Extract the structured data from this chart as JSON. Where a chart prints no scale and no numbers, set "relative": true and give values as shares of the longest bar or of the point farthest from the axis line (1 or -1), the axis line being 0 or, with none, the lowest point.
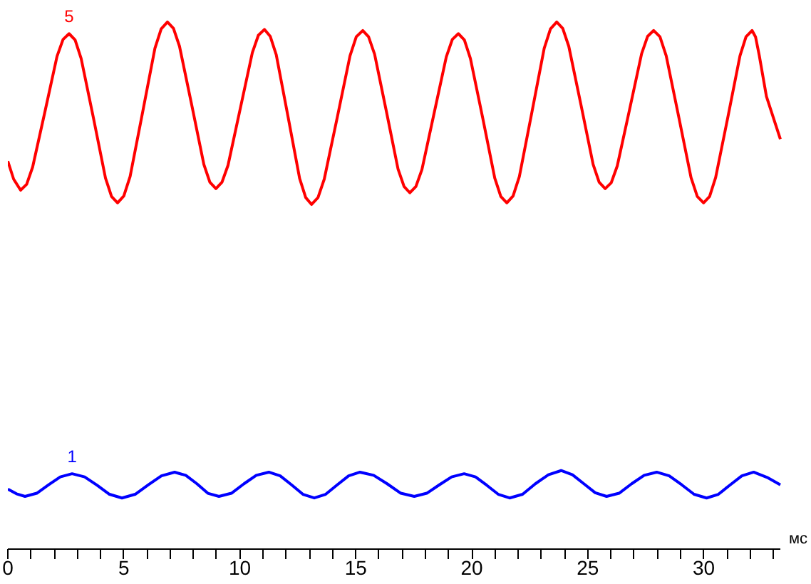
{
  "chart_data": {
    "type": "line",
    "relative": true,
    "xlabel": "мс",
    "line_style": "solid",
    "xlim": [
      0,
      33.3
    ],
    "xticks": [
      0,
      {
        "value": 1,
        "label": null
      },
      {
        "value": 2,
        "label": null
      },
      {
        "value": 3,
        "label": null
      },
      {
        "value": 4,
        "label": null
      },
      5,
      {
        "value": 6,
        "label": null
      },
      {
        "value": 7,
        "label": null
      },
      {
        "value": 8,
        "label": null
      },
      {
        "value": 9,
        "label": null
      },
      10,
      {
        "value": 11,
        "label": null
      },
      {
        "value": 12,
        "label": null
      },
      {
        "value": 13,
        "label": null
      },
      {
        "value": 14,
        "label": null
      },
      15,
      {
        "value": 16,
        "label": null
      },
      {
        "value": 17,
        "label": null
      },
      {
        "value": 18,
        "label": null
      },
      {
        "value": 19,
        "label": null
      },
      20,
      {
        "value": 21,
        "label": null
      },
      {
        "value": 22,
        "label": null
      },
      {
        "value": 23,
        "label": null
      },
      {
        "value": 24,
        "label": null
      },
      25,
      {
        "value": 26,
        "label": null
      },
      {
        "value": 27,
        "label": null
      },
      {
        "value": 28,
        "label": null
      },
      {
        "value": 29,
        "label": null
      },
      30,
      {
        "value": 31,
        "label": null
      },
      {
        "value": 32,
        "label": null
      },
      {
        "value": 33,
        "label": null
      }
    ],
    "series": [
      {
        "name": "5",
        "color": "#ff0000",
        "x": [
          0,
          0.25,
          0.55,
          0.81,
          1.07,
          1.6,
          2.12,
          2.38,
          2.64,
          2.9,
          3.16,
          3.69,
          4.21,
          4.47,
          4.73,
          5.0,
          5.27,
          5.81,
          6.34,
          6.61,
          6.88,
          7.14,
          7.4,
          7.93,
          8.45,
          8.71,
          8.97,
          9.23,
          9.49,
          10.02,
          10.54,
          10.8,
          11.06,
          11.31,
          11.57,
          12.08,
          12.58,
          12.84,
          13.09,
          13.37,
          13.64,
          14.2,
          14.75,
          15.02,
          15.3,
          15.55,
          15.81,
          16.32,
          16.82,
          17.08,
          17.33,
          17.59,
          17.85,
          18.38,
          18.9,
          19.16,
          19.42,
          19.68,
          19.94,
          20.47,
          20.99,
          21.25,
          21.51,
          21.78,
          22.05,
          22.59,
          23.12,
          23.39,
          23.66,
          23.92,
          24.18,
          24.71,
          25.23,
          25.49,
          25.75,
          26.01,
          26.27,
          26.8,
          27.32,
          27.58,
          27.84,
          28.11,
          28.38,
          28.92,
          29.45,
          29.72,
          29.99,
          30.25,
          30.51,
          31.04,
          31.56,
          31.82,
          32.08,
          32.23,
          32.39,
          32.7,
          33.3
        ],
        "values": [
          0.736,
          0.702,
          0.681,
          0.692,
          0.725,
          0.83,
          0.935,
          0.967,
          0.978,
          0.966,
          0.931,
          0.818,
          0.704,
          0.669,
          0.657,
          0.67,
          0.707,
          0.829,
          0.95,
          0.987,
          1.0,
          0.988,
          0.954,
          0.842,
          0.73,
          0.696,
          0.684,
          0.696,
          0.728,
          0.836,
          0.942,
          0.975,
          0.986,
          0.973,
          0.938,
          0.82,
          0.703,
          0.667,
          0.654,
          0.667,
          0.702,
          0.819,
          0.936,
          0.972,
          0.984,
          0.972,
          0.939,
          0.83,
          0.721,
          0.688,
          0.676,
          0.688,
          0.72,
          0.828,
          0.934,
          0.967,
          0.978,
          0.966,
          0.931,
          0.818,
          0.704,
          0.669,
          0.657,
          0.67,
          0.707,
          0.829,
          0.95,
          0.987,
          1.0,
          0.988,
          0.954,
          0.842,
          0.73,
          0.696,
          0.684,
          0.695,
          0.727,
          0.834,
          0.94,
          0.973,
          0.984,
          0.972,
          0.936,
          0.82,
          0.705,
          0.669,
          0.657,
          0.669,
          0.705,
          0.82,
          0.936,
          0.972,
          0.984,
          0.972,
          0.937,
          0.859,
          0.778
        ]
      },
      {
        "name": "1",
        "color": "#0000ff",
        "x": [
          0,
          0.37,
          0.74,
          1.25,
          1.76,
          2.26,
          2.77,
          3.31,
          3.85,
          4.38,
          4.92,
          5.49,
          6.06,
          6.62,
          7.19,
          7.67,
          8.15,
          8.62,
          9.1,
          9.64,
          10.18,
          10.71,
          11.25,
          11.74,
          12.23,
          12.72,
          13.21,
          13.7,
          14.2,
          14.69,
          15.18,
          15.77,
          16.35,
          16.94,
          17.52,
          18.06,
          18.6,
          19.13,
          19.67,
          20.16,
          20.65,
          21.14,
          21.63,
          22.19,
          22.74,
          23.3,
          23.85,
          24.34,
          24.83,
          25.32,
          25.81,
          26.35,
          26.89,
          27.43,
          27.97,
          28.51,
          29.05,
          29.58,
          30.12,
          30.63,
          31.14,
          31.64,
          32.15,
          32.73,
          33.3
        ],
        "values": [
          0.114,
          0.105,
          0.1,
          0.106,
          0.122,
          0.137,
          0.143,
          0.137,
          0.121,
          0.104,
          0.097,
          0.104,
          0.122,
          0.139,
          0.146,
          0.14,
          0.124,
          0.106,
          0.1,
          0.106,
          0.124,
          0.14,
          0.146,
          0.139,
          0.122,
          0.104,
          0.097,
          0.104,
          0.122,
          0.139,
          0.146,
          0.14,
          0.124,
          0.106,
          0.1,
          0.106,
          0.122,
          0.137,
          0.143,
          0.137,
          0.121,
          0.104,
          0.097,
          0.104,
          0.124,
          0.141,
          0.149,
          0.141,
          0.124,
          0.107,
          0.1,
          0.106,
          0.124,
          0.14,
          0.146,
          0.139,
          0.122,
          0.104,
          0.097,
          0.104,
          0.122,
          0.139,
          0.146,
          0.136,
          0.122
        ]
      }
    ]
  }
}
